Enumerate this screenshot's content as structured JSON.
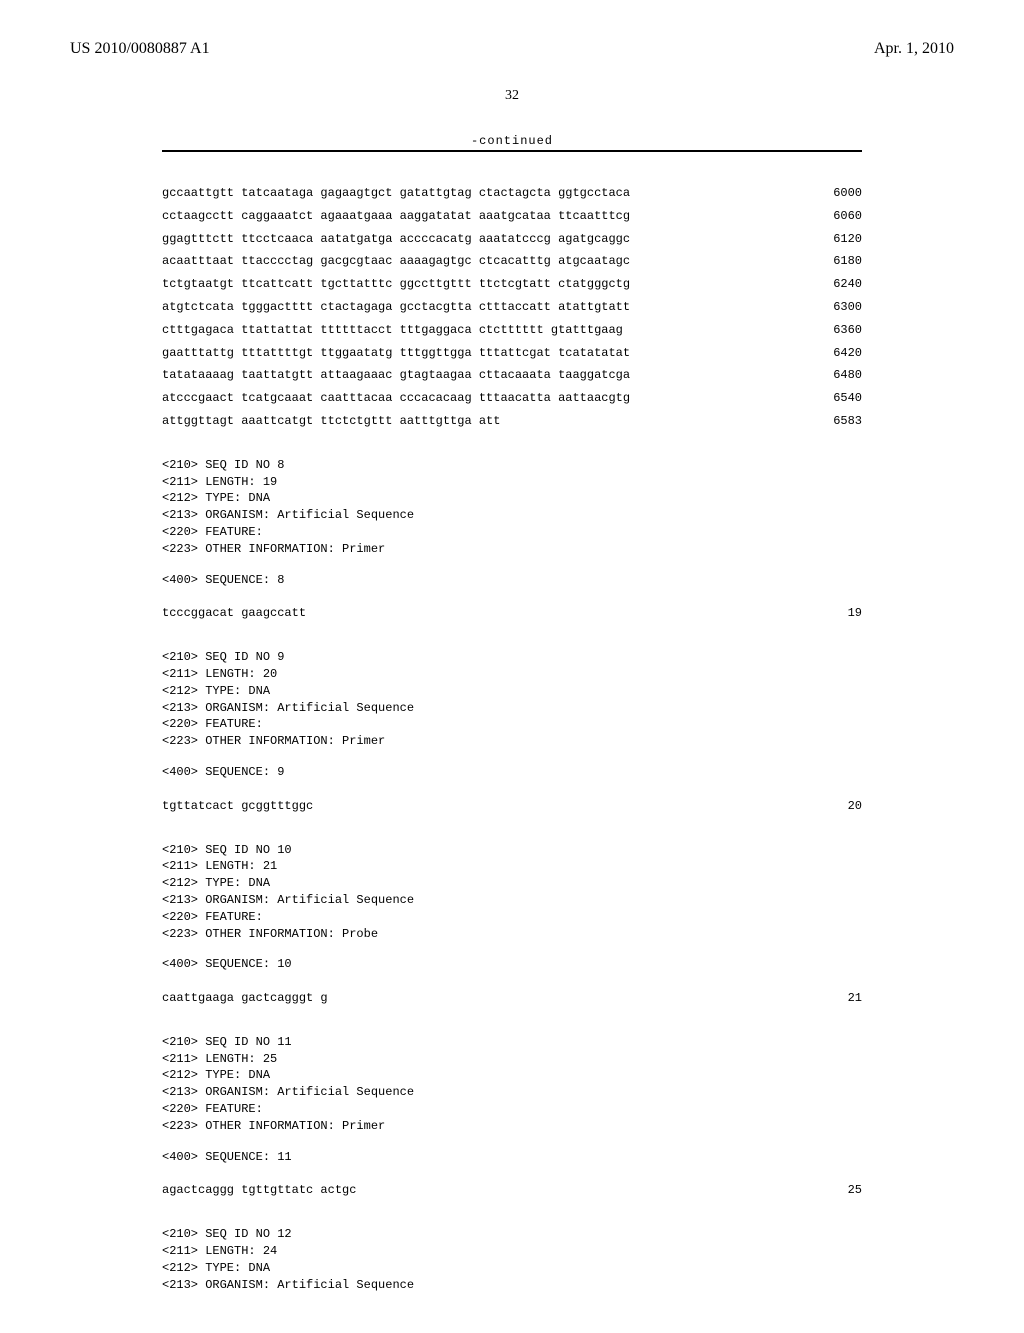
{
  "header": {
    "pub_number": "US 2010/0080887 A1",
    "pub_date": "Apr. 1, 2010"
  },
  "page_number": "32",
  "continued_label": "-continued",
  "sequence_lines": [
    {
      "text": "gccaattgtt tatcaataga gagaagtgct gatattgtag ctactagcta ggtgcctaca",
      "num": "6000"
    },
    {
      "text": "cctaagcctt caggaaatct agaaatgaaa aaggatatat aaatgcataa ttcaatttcg",
      "num": "6060"
    },
    {
      "text": "ggagtttctt ttcctcaaca aatatgatga accccacatg aaatatcccg agatgcaggc",
      "num": "6120"
    },
    {
      "text": "acaatttaat ttacccctag gacgcgtaac aaaagagtgc ctcacatttg atgcaatagc",
      "num": "6180"
    },
    {
      "text": "tctgtaatgt ttcattcatt tgcttatttc ggccttgttt ttctcgtatt ctatgggctg",
      "num": "6240"
    },
    {
      "text": "atgtctcata tgggactttt ctactagaga gcctacgtta ctttaccatt atattgtatt",
      "num": "6300"
    },
    {
      "text": "ctttgagaca ttattattat ttttttacct tttgaggaca ctctttttt gtatttgaag",
      "num": "6360"
    },
    {
      "text": "gaatttattg tttattttgt ttggaatatg tttggttgga tttattcgat tcatatatat",
      "num": "6420"
    },
    {
      "text": "tatataaaag taattatgtt attaagaaac gtagtaagaa cttacaaata taaggatcga",
      "num": "6480"
    },
    {
      "text": "atcccgaact tcatgcaaat caatttacaa cccacacaag tttaacatta aattaacgtg",
      "num": "6540"
    },
    {
      "text": "attggttagt aaattcatgt ttctctgttt aatttgttga att",
      "num": "6583"
    }
  ],
  "entries": [
    {
      "meta": [
        "<210> SEQ ID NO 8",
        "<211> LENGTH: 19",
        "<212> TYPE: DNA",
        "<213> ORGANISM: Artificial Sequence",
        "<220> FEATURE:",
        "<223> OTHER INFORMATION: Primer"
      ],
      "seq_header": "<400> SEQUENCE: 8",
      "seq_text": "tcccggacat gaagccatt",
      "seq_num": "19"
    },
    {
      "meta": [
        "<210> SEQ ID NO 9",
        "<211> LENGTH: 20",
        "<212> TYPE: DNA",
        "<213> ORGANISM: Artificial Sequence",
        "<220> FEATURE:",
        "<223> OTHER INFORMATION: Primer"
      ],
      "seq_header": "<400> SEQUENCE: 9",
      "seq_text": "tgttatcact gcggtttggc",
      "seq_num": "20"
    },
    {
      "meta": [
        "<210> SEQ ID NO 10",
        "<211> LENGTH: 21",
        "<212> TYPE: DNA",
        "<213> ORGANISM: Artificial Sequence",
        "<220> FEATURE:",
        "<223> OTHER INFORMATION: Probe"
      ],
      "seq_header": "<400> SEQUENCE: 10",
      "seq_text": "caattgaaga gactcagggt g",
      "seq_num": "21"
    },
    {
      "meta": [
        "<210> SEQ ID NO 11",
        "<211> LENGTH: 25",
        "<212> TYPE: DNA",
        "<213> ORGANISM: Artificial Sequence",
        "<220> FEATURE:",
        "<223> OTHER INFORMATION: Primer"
      ],
      "seq_header": "<400> SEQUENCE: 11",
      "seq_text": "agactcaggg tgttgttatc actgc",
      "seq_num": "25"
    },
    {
      "meta": [
        "<210> SEQ ID NO 12",
        "<211> LENGTH: 24",
        "<212> TYPE: DNA",
        "<213> ORGANISM: Artificial Sequence"
      ],
      "seq_header": null,
      "seq_text": null,
      "seq_num": null
    }
  ]
}
